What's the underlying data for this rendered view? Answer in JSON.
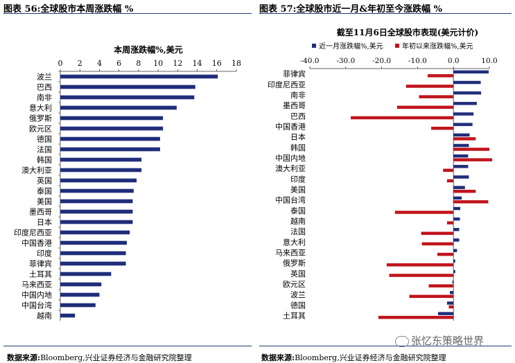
{
  "left_panel": {
    "title": "图表 56:全球股市本周涨跌幅 %",
    "source_label": "数据来源:",
    "source_text": "Bloomberg,兴业证券经济与金融研究院整理"
  },
  "right_panel": {
    "title": "图表 57:全球股市近一月&年初至今涨跌幅 %",
    "source_label": "数据来源:",
    "source_text": "Bloomberg,兴业证券经济与金融研究院整理"
  },
  "watermark": "张忆东策略世界",
  "colors": {
    "navy": "#1f2d7a",
    "red": "#c0141c",
    "rule": "#1f3a7a"
  },
  "chart_data": [
    {
      "type": "bar",
      "orientation": "horizontal",
      "title": "本周涨跌幅%,美元",
      "xlim": [
        0,
        18
      ],
      "xticks": [
        0,
        2,
        4,
        6,
        8,
        10,
        12,
        14,
        16,
        18
      ],
      "xtick_labels": [
        "0",
        "2",
        "4",
        "6",
        "8",
        "10",
        "12",
        "14",
        "16",
        "18"
      ],
      "categories": [
        "波兰",
        "巴西",
        "南非",
        "意大利",
        "俄罗斯",
        "欧元区",
        "德国",
        "法国",
        "韩国",
        "澳大利亚",
        "英国",
        "泰国",
        "美国",
        "墨西哥",
        "日本",
        "印度尼西亚",
        "中国香港",
        "印度",
        "菲律宾",
        "土耳其",
        "马来西亚",
        "中国内地",
        "中国台湾",
        "越南"
      ],
      "values": [
        16.1,
        13.8,
        13.7,
        11.9,
        10.5,
        10.5,
        10.2,
        10.2,
        8.3,
        8.3,
        7.8,
        7.5,
        7.4,
        7.4,
        7.4,
        7.1,
        6.8,
        6.7,
        6.7,
        5.2,
        4.2,
        4.0,
        3.6,
        1.5
      ],
      "grid": false
    },
    {
      "type": "bar",
      "orientation": "horizontal",
      "title": "截至11月6日全球股市表现(美元计价)",
      "legend_position": "top",
      "xlim": [
        -40,
        10
      ],
      "xticks": [
        -40,
        -30,
        -20,
        -10,
        0,
        10
      ],
      "xtick_labels": [
        "-40.0",
        "-30.0",
        "-20.0",
        "-10.0",
        "0.0",
        "10.0"
      ],
      "categories": [
        "菲律宾",
        "印度尼西亚",
        "南非",
        "墨西哥",
        "巴西",
        "中国香港",
        "日本",
        "韩国",
        "中国内地",
        "澳大利亚",
        "印度",
        "美国",
        "中国台湾",
        "泰国",
        "越南",
        "法国",
        "意大利",
        "马来西亚",
        "俄罗斯",
        "英国",
        "欧元区",
        "波兰",
        "德国",
        "土耳其"
      ],
      "series": [
        {
          "name": "近一月涨跌幅%,美元",
          "values": [
            9.8,
            7.6,
            7.7,
            6.5,
            5.6,
            5.3,
            4.5,
            4.3,
            4.1,
            4.1,
            4.3,
            3.2,
            2.3,
            1.9,
            1.8,
            1.6,
            1.6,
            1.0,
            0.5,
            0.5,
            -0.3,
            -1.0,
            -1.8,
            -4.3
          ]
        },
        {
          "name": "年初以来涨跌幅%,美元",
          "values": [
            -7.2,
            -13.2,
            -9.6,
            -15.7,
            -28.6,
            -6.2,
            6.2,
            10.0,
            10.8,
            -2.9,
            -1.8,
            6.2,
            9.7,
            -16.3,
            -1.8,
            -9.0,
            -8.8,
            -4.5,
            -18.6,
            -17.9,
            -6.9,
            -12.3,
            -1.3,
            -20.9
          ]
        }
      ],
      "grid": false
    }
  ]
}
